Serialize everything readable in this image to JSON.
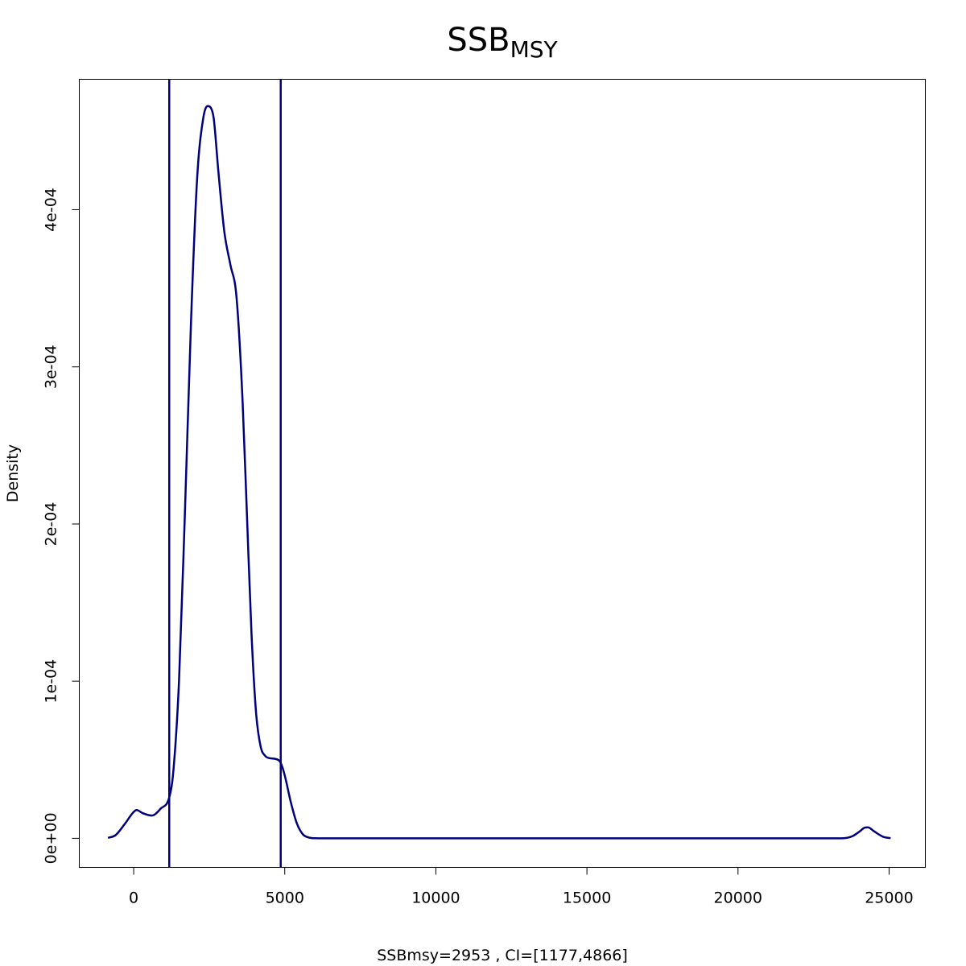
{
  "chart_data": {
    "type": "line",
    "title": "SSB",
    "title_subscript": "MSY",
    "xlabel": "SSBmsy=2953 , CI=[1177,4866]",
    "ylabel": "Density",
    "xlim": [
      -1800,
      26200
    ],
    "ylim": [
      -1.85e-05,
      0.000483
    ],
    "x_ticks": [
      0,
      5000,
      10000,
      15000,
      20000,
      25000
    ],
    "x_tick_labels": [
      "0",
      "5000",
      "10000",
      "15000",
      "20000",
      "25000"
    ],
    "y_ticks": [
      0,
      0.0001,
      0.0002,
      0.0003,
      0.0004
    ],
    "y_tick_labels": [
      "0e+00",
      "1e-04",
      "2e-04",
      "3e-04",
      "4e-04"
    ],
    "grid": false,
    "color": "#00007f",
    "vlines": [
      1177,
      4866
    ],
    "series": [
      {
        "x": [
          -850,
          -600,
          -300,
          0,
          100,
          300,
          600,
          900,
          1177,
          1300,
          1500,
          1700,
          1900,
          2100,
          2300,
          2450,
          2550,
          2650,
          2800,
          3000,
          3200,
          3400,
          3600,
          3750,
          3900,
          4050,
          4200,
          4350,
          4500,
          4700,
          4866,
          5000,
          5200,
          5400,
          5600,
          5800,
          6000,
          6300,
          10000,
          15000,
          20000,
          23000,
          23500,
          23800,
          24000,
          24200,
          24300,
          24500,
          24800,
          25050
        ],
        "y": [
          3e-07,
          2e-06,
          9e-06,
          1.68e-05,
          1.8e-05,
          1.6e-05,
          1.45e-05,
          1.9e-05,
          2.6e-05,
          4e-05,
          0.0001,
          0.00021,
          0.00033,
          0.00042,
          0.000458,
          0.000466,
          0.000465,
          0.000458,
          0.000425,
          0.000386,
          0.000365,
          0.000345,
          0.00028,
          0.000205,
          0.00013,
          8e-05,
          5.85e-05,
          5.25e-05,
          5.1e-05,
          5.05e-05,
          4.8e-05,
          4e-05,
          2.3e-05,
          9.5e-06,
          2.5e-06,
          5e-07,
          5e-08,
          0,
          0,
          0,
          0,
          0,
          1e-07,
          1.5e-06,
          4e-06,
          6.8e-06,
          7e-06,
          4.5e-06,
          1e-06,
          1e-07
        ]
      }
    ]
  }
}
